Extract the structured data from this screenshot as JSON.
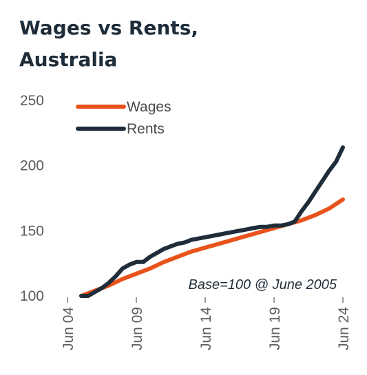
{
  "chart_data": {
    "type": "line",
    "title_lines": [
      "Wages vs Rents,",
      "Australia"
    ],
    "annotation": "Base=100 @ June 2005",
    "ylim": [
      100,
      250
    ],
    "yticks": [
      100,
      150,
      200,
      250
    ],
    "xlim": [
      2004.5,
      2024.5
    ],
    "xticks": [
      {
        "x": 2004.5,
        "label": "Jun 04"
      },
      {
        "x": 2009.5,
        "label": "Jun 09"
      },
      {
        "x": 2014.5,
        "label": "Jun 14"
      },
      {
        "x": 2019.5,
        "label": "Jun 19"
      },
      {
        "x": 2024.5,
        "label": "Jun 24"
      }
    ],
    "legend_position": "top-left",
    "grid": false,
    "series": [
      {
        "name": "Wages",
        "color": "#e8531b",
        "points": [
          [
            2005.5,
            100
          ],
          [
            2006.5,
            104
          ],
          [
            2007.5,
            108
          ],
          [
            2008.5,
            113
          ],
          [
            2009.5,
            117
          ],
          [
            2010.5,
            121
          ],
          [
            2011.5,
            126
          ],
          [
            2012.5,
            130
          ],
          [
            2013.5,
            134
          ],
          [
            2014.5,
            137
          ],
          [
            2015.5,
            140
          ],
          [
            2016.5,
            143
          ],
          [
            2017.5,
            146
          ],
          [
            2018.5,
            149
          ],
          [
            2019.5,
            152
          ],
          [
            2020.5,
            155
          ],
          [
            2021.5,
            158
          ],
          [
            2022.5,
            162
          ],
          [
            2023.5,
            167
          ],
          [
            2024.5,
            174
          ]
        ]
      },
      {
        "name": "Rents",
        "color": "#1f2d3a",
        "points": [
          [
            2005.5,
            100
          ],
          [
            2006.0,
            100
          ],
          [
            2006.5,
            103
          ],
          [
            2007.0,
            106
          ],
          [
            2007.5,
            110
          ],
          [
            2008.0,
            115
          ],
          [
            2008.5,
            121
          ],
          [
            2009.0,
            124
          ],
          [
            2009.5,
            126
          ],
          [
            2010.0,
            126
          ],
          [
            2010.5,
            130
          ],
          [
            2011.0,
            133
          ],
          [
            2011.5,
            136
          ],
          [
            2012.0,
            138
          ],
          [
            2012.5,
            140
          ],
          [
            2013.0,
            141
          ],
          [
            2013.5,
            143
          ],
          [
            2014.0,
            144
          ],
          [
            2014.5,
            145
          ],
          [
            2015.0,
            146
          ],
          [
            2015.5,
            147
          ],
          [
            2016.0,
            148
          ],
          [
            2016.5,
            149
          ],
          [
            2017.0,
            150
          ],
          [
            2017.5,
            151
          ],
          [
            2018.0,
            152
          ],
          [
            2018.5,
            153
          ],
          [
            2019.0,
            153
          ],
          [
            2019.5,
            154
          ],
          [
            2020.0,
            154
          ],
          [
            2020.5,
            155
          ],
          [
            2021.0,
            157
          ],
          [
            2021.5,
            165
          ],
          [
            2022.0,
            172
          ],
          [
            2022.5,
            180
          ],
          [
            2023.0,
            188
          ],
          [
            2023.5,
            196
          ],
          [
            2024.0,
            203
          ],
          [
            2024.5,
            214
          ]
        ]
      }
    ]
  }
}
